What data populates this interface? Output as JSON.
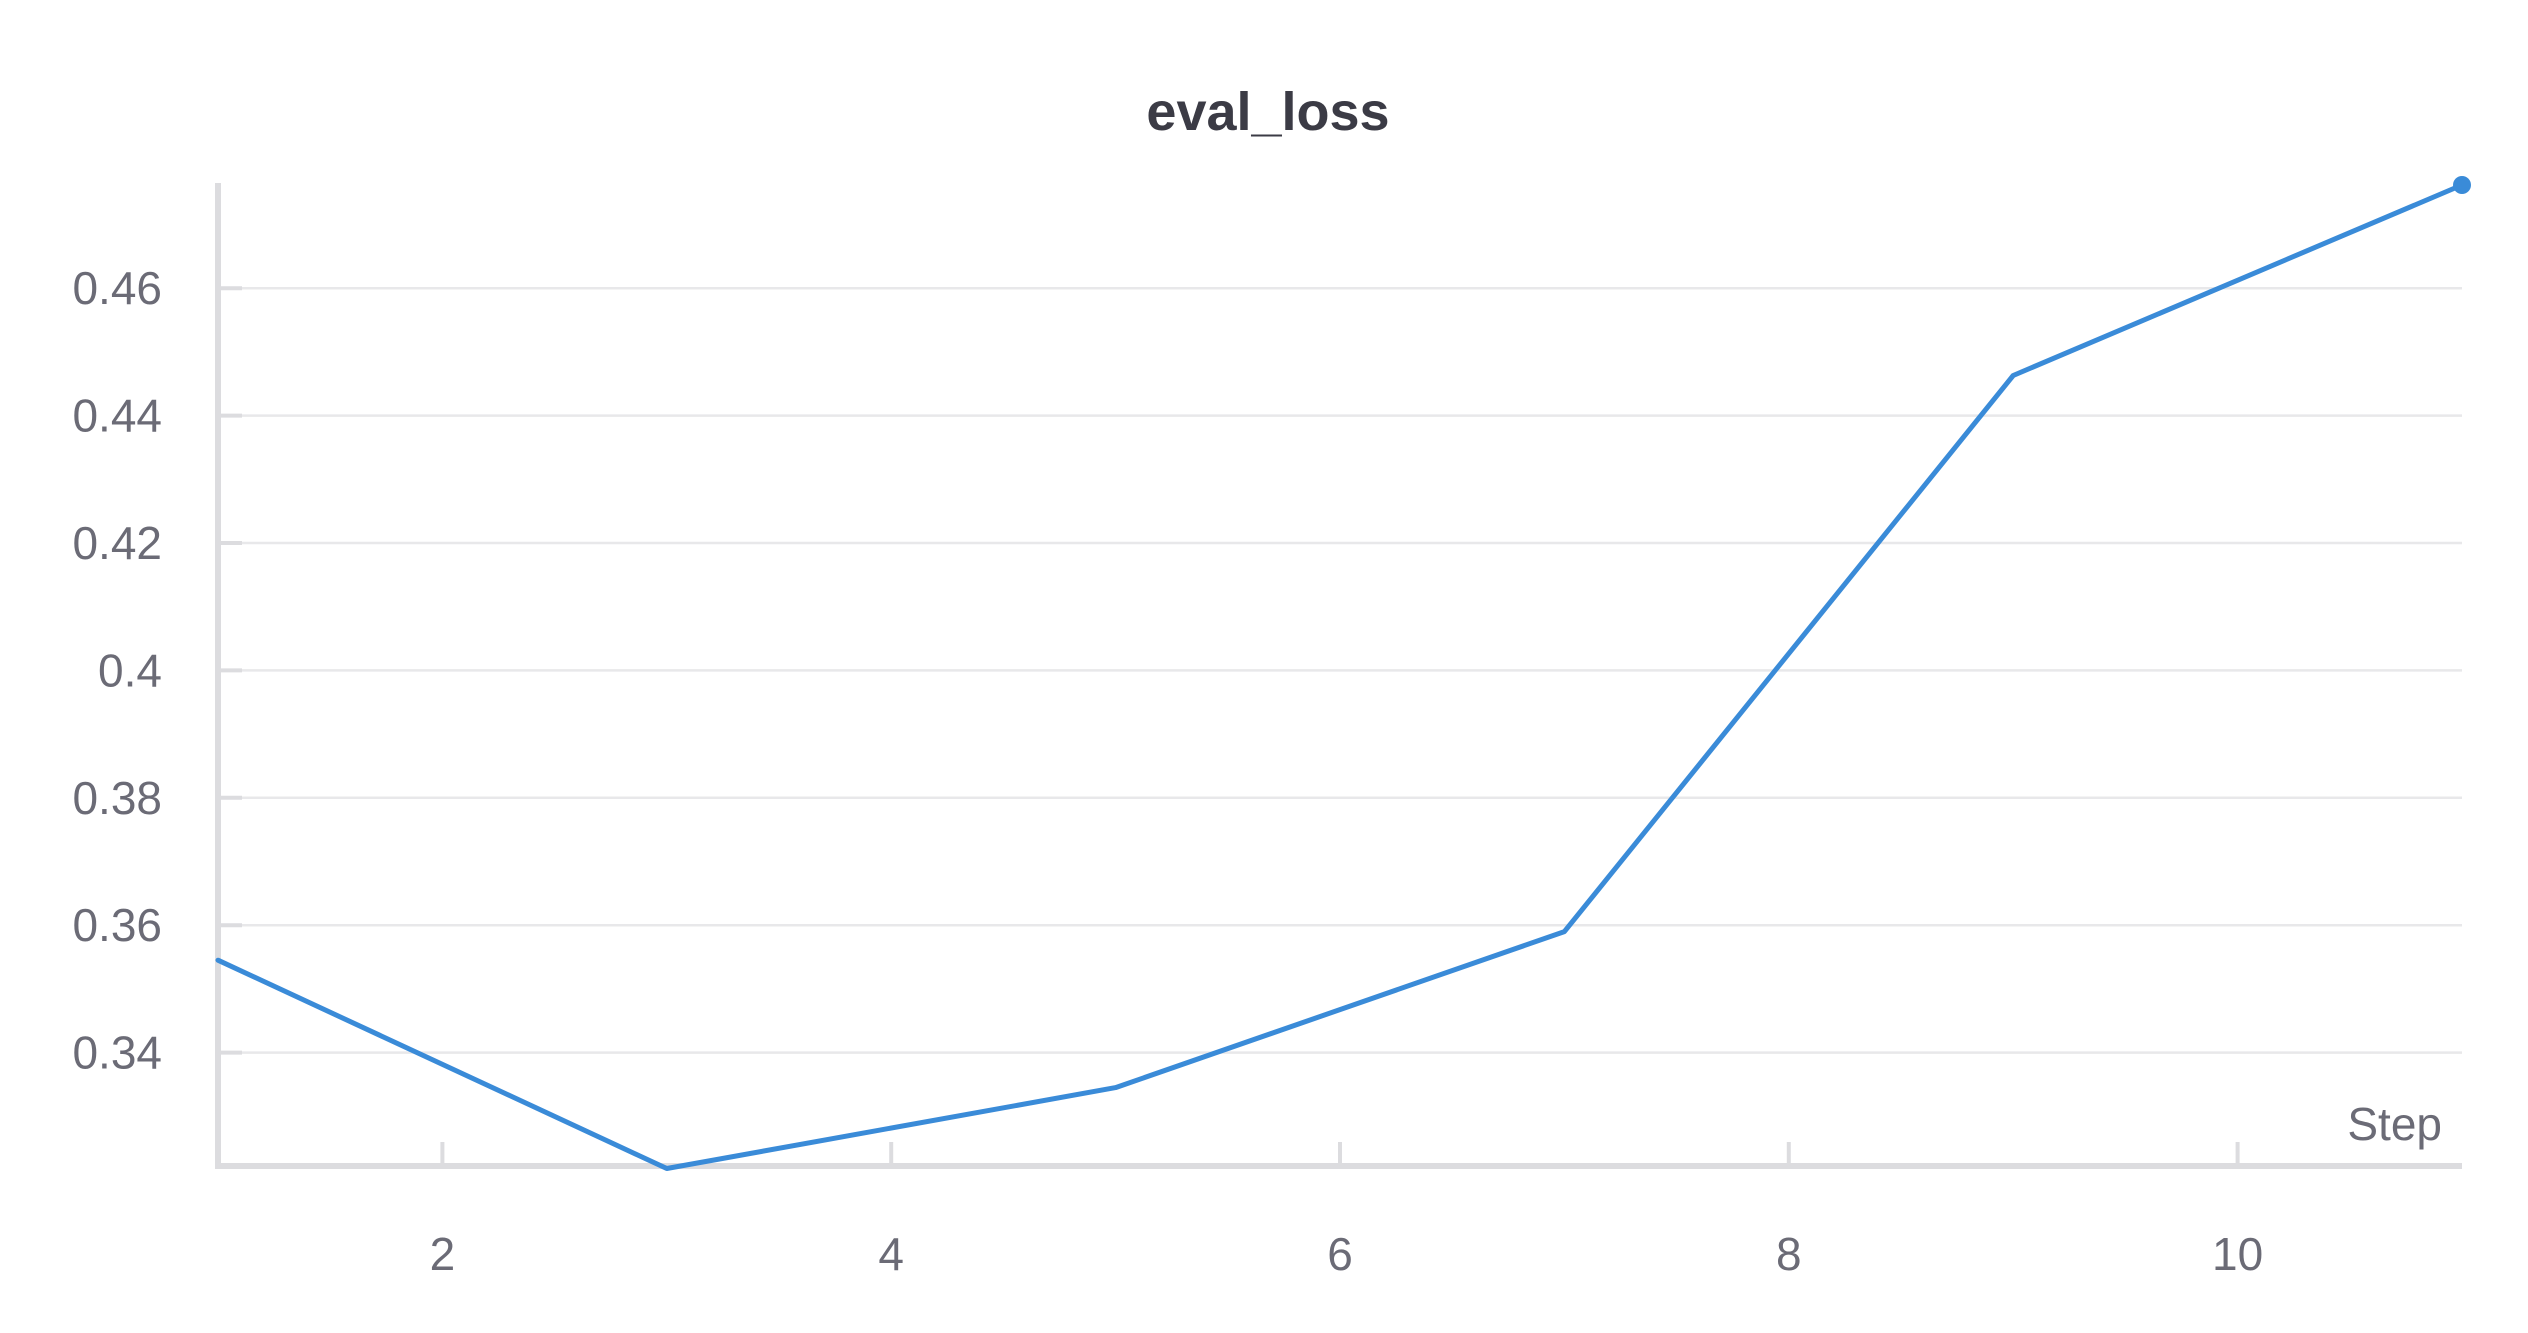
{
  "chart_data": {
    "type": "line",
    "title": "eval_loss",
    "xlabel": "Step",
    "ylabel": "",
    "x": [
      1,
      3,
      5,
      7,
      9,
      11
    ],
    "series": [
      {
        "values": [
          0.3545,
          0.3218,
          0.3345,
          0.359,
          0.4463,
          0.4762
        ],
        "color": "#3a8bd8"
      }
    ],
    "xlim": [
      1,
      11
    ],
    "ylim": [
      0.3222,
      0.4762
    ],
    "xticks": [
      2,
      4,
      6,
      8,
      10
    ],
    "yticks": [
      0.34,
      0.36,
      0.38,
      0.4,
      0.42,
      0.44,
      0.46
    ],
    "ytick_labels": [
      "0.34",
      "0.36",
      "0.38",
      "0.4",
      "0.42",
      "0.44",
      "0.46"
    ],
    "grid": true,
    "legend": "none",
    "end_marker": true
  }
}
